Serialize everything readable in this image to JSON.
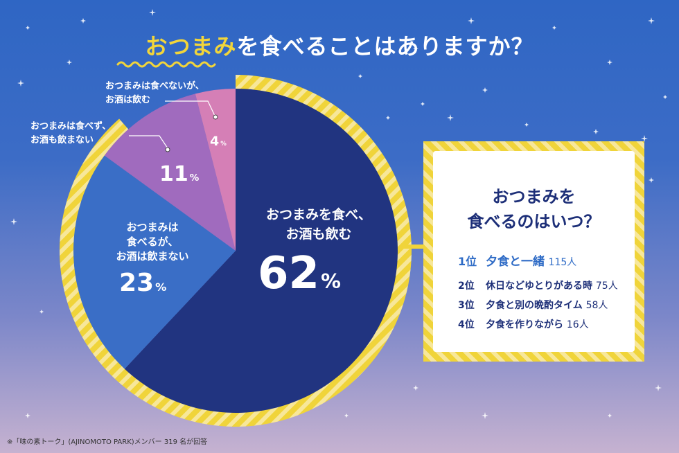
{
  "title": {
    "highlight": "おつまみ",
    "rest": "を食べることはありますか？"
  },
  "chart_data": {
    "type": "pie",
    "slices": [
      {
        "label": "おつまみを食べ、お酒も飲む",
        "value": 62,
        "color": "#213480"
      },
      {
        "label": "おつまみは食べるが、お酒は飲まない",
        "value": 23,
        "color": "#3a6ec6"
      },
      {
        "label": "おつまみは食べず、お酒も飲まない",
        "value": 11,
        "color": "#a06bbe"
      },
      {
        "label": "おつまみは食べないが、お酒は飲む",
        "value": 4,
        "color": "#d57fb6"
      }
    ]
  },
  "labels": {
    "s62_line1": "おつまみを食べ、",
    "s62_line2": "お酒も飲む",
    "s62_pct": "62",
    "s23_line1": "おつまみは",
    "s23_line2": "食べるが、",
    "s23_line3": "お酒は飲まない",
    "s23_pct": "23",
    "s11_line1": "おつまみは食べず、",
    "s11_line2": "お酒も飲まない",
    "s11_pct": "11",
    "s4_line1": "おつまみは食べないが、",
    "s4_line2": "お酒は飲む",
    "s4_pct": "4",
    "pct_unit": "%"
  },
  "ranking": {
    "title_line1": "おつまみを",
    "title_line2": "食べるのはいつ？",
    "items": [
      {
        "rank": "1位",
        "label": "夕食と一緒",
        "count": "115人"
      },
      {
        "rank": "2位",
        "label": "休日などゆとりがある時",
        "count": "75人"
      },
      {
        "rank": "3位",
        "label": "夕食と別の晩酌タイム",
        "count": "58人"
      },
      {
        "rank": "4位",
        "label": "夕食を作りながら",
        "count": "16人"
      }
    ]
  },
  "footer": "※「味の素トーク」(AJINOMOTO PARK)メンバー 319 名が回答"
}
